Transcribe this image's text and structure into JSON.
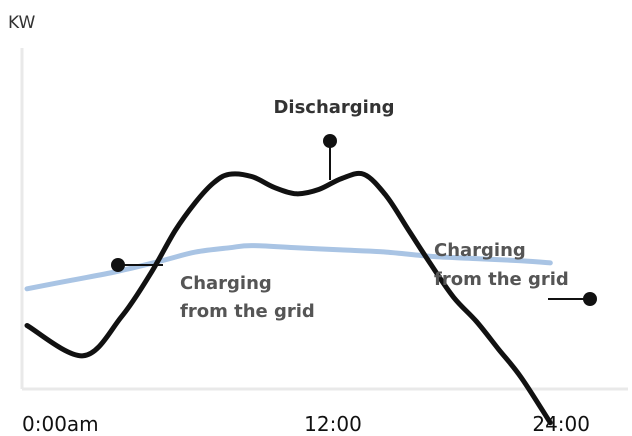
{
  "chart_data": {
    "type": "line",
    "ylabel": "KW",
    "xlabel": "",
    "x_ticks": [
      "0:00am",
      "12:00",
      "24:00"
    ],
    "x_tick_hours": [
      0,
      12,
      24
    ],
    "xlim": [
      0,
      24
    ],
    "grid": false,
    "legend": "none",
    "series": [
      {
        "color": "#111111",
        "x": [
          0,
          2.5,
          4.2,
          5.5,
          6.6,
          7.5,
          8.3,
          9.0,
          10.0,
          11.0,
          12.0,
          13.0,
          14.0,
          15.0,
          16.0,
          17.0,
          18.0,
          19.0,
          20.0,
          21.0,
          22.0,
          23.3
        ],
        "y": [
          0.28,
          0.14,
          0.32,
          0.52,
          0.72,
          0.85,
          0.94,
          0.98,
          0.97,
          0.92,
          0.89,
          0.91,
          0.96,
          0.98,
          0.88,
          0.72,
          0.56,
          0.41,
          0.3,
          0.17,
          0.04,
          -0.17
        ]
      },
      {
        "color": "#a9c4e4",
        "x": [
          0,
          2.0,
          4.0,
          6.0,
          7.5,
          9.0,
          10.0,
          12.0,
          14.0,
          16.0,
          18.0,
          20.0,
          22.0,
          23.3
        ],
        "y": [
          0.45,
          0.49,
          0.53,
          0.58,
          0.62,
          0.64,
          0.65,
          0.64,
          0.63,
          0.62,
          0.6,
          0.59,
          0.58,
          0.57
        ]
      }
    ],
    "annotations": [
      {
        "text_lines": [
          "Discharging"
        ],
        "color": "#333333"
      },
      {
        "text_lines": [
          "Charging",
          "from the grid"
        ],
        "color": "#555555"
      },
      {
        "text_lines": [
          "Charging",
          "from the grid"
        ],
        "color": "#555555"
      }
    ]
  }
}
